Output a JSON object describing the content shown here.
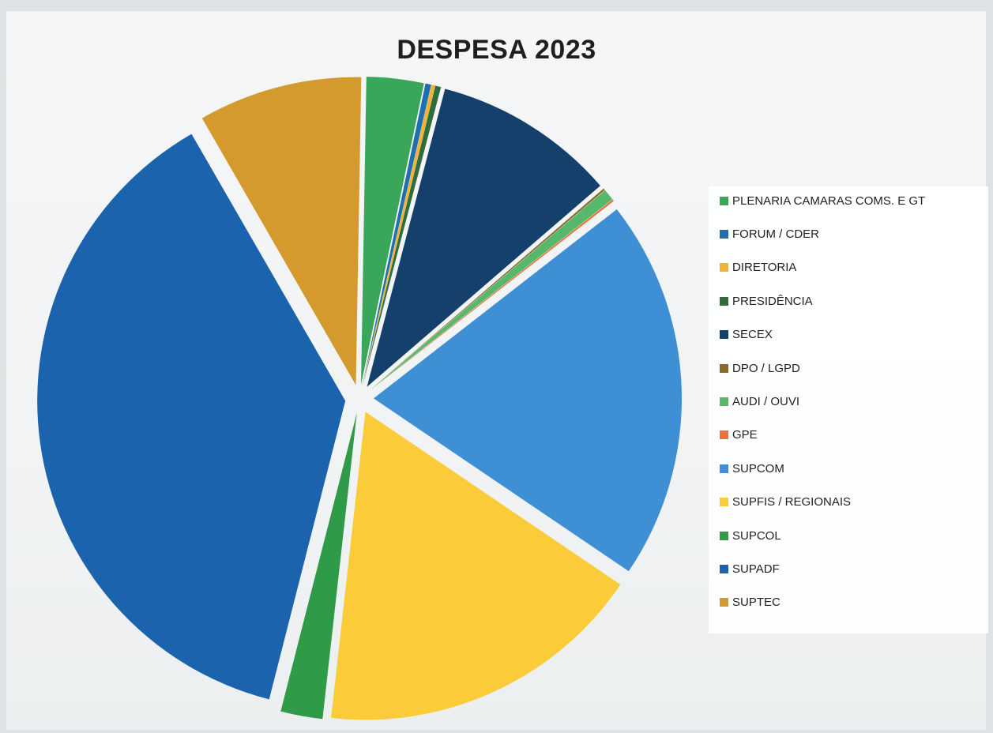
{
  "chart_data": {
    "type": "pie",
    "title": "DESPESA 2023",
    "legend_position": "right",
    "slices": [
      {
        "label": "PLENARIA CAMARAS COMS. E GT",
        "value": 3.0,
        "color": "#3aa65a"
      },
      {
        "label": "FORUM / CDER",
        "value": 0.3,
        "color": "#1f6fb0"
      },
      {
        "label": "DIRETORIA",
        "value": 0.2,
        "color": "#f2b233"
      },
      {
        "label": "PRESIDÊNCIA",
        "value": 0.3,
        "color": "#2f6e3c"
      },
      {
        "label": "SECEX",
        "value": 9.6,
        "color": "#14406b"
      },
      {
        "label": "DPO / LGPD",
        "value": 0.1,
        "color": "#8a6a2a"
      },
      {
        "label": "AUDI / OUVI",
        "value": 0.6,
        "color": "#56b86a"
      },
      {
        "label": "GPE",
        "value": 0.1,
        "color": "#e8743b"
      },
      {
        "label": "SUPCOM",
        "value": 20.0,
        "color": "#3e8fd3"
      },
      {
        "label": "SUPFIS / REGIONAIS",
        "value": 17.3,
        "color": "#fbcb3a"
      },
      {
        "label": "SUPCOL",
        "value": 2.2,
        "color": "#2f9a48"
      },
      {
        "label": "SUPADF",
        "value": 37.7,
        "color": "#1b64ad"
      },
      {
        "label": "SUPTEC",
        "value": 8.6,
        "color": "#d49a2e"
      }
    ]
  }
}
